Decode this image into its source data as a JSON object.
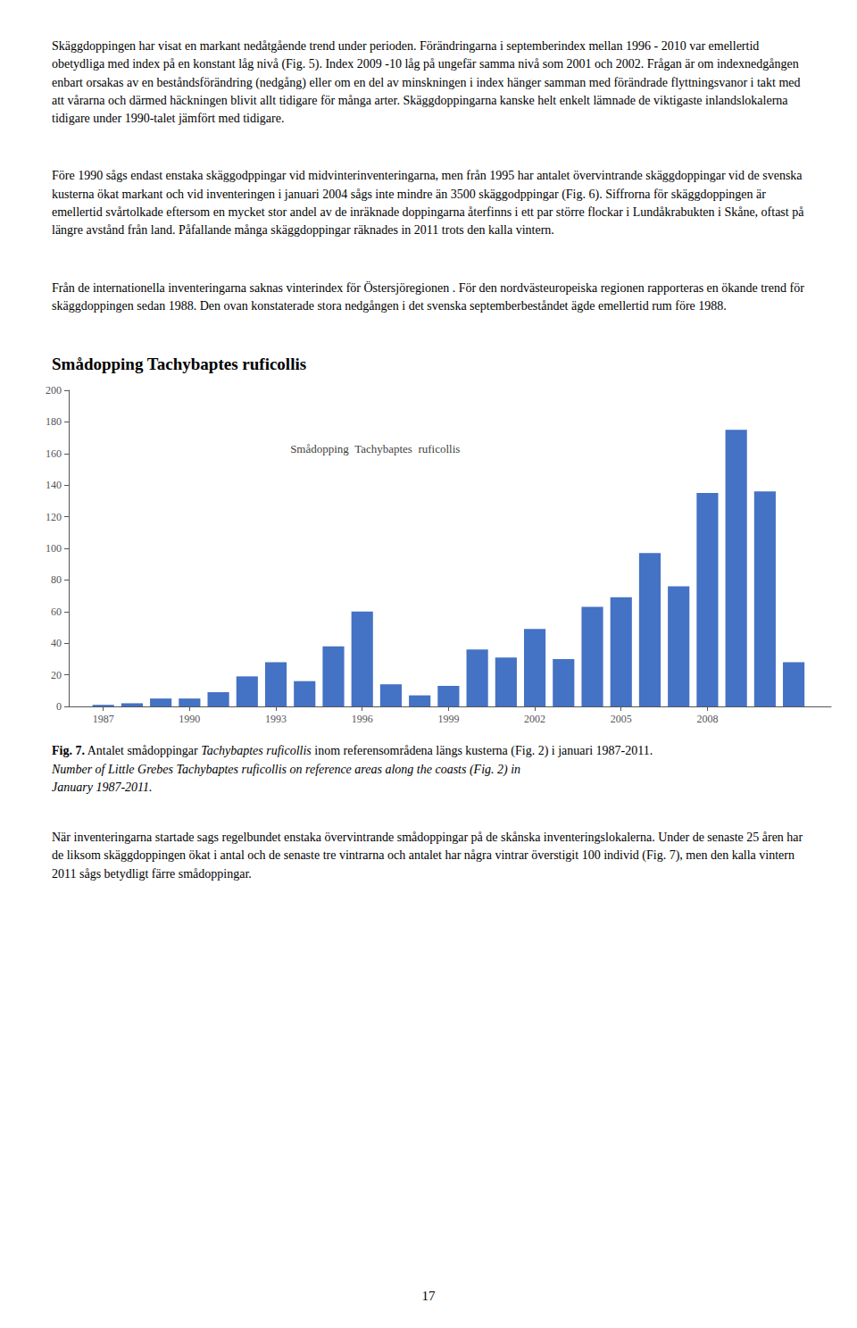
{
  "page": {
    "paragraphs": [
      "Skäggdoppingen har visat en markant nedåtgående trend under perioden. Förändringarna i septemberindex mellan 1996 - 2010 var emellertid obetydliga med index på en konstant låg nivå (Fig. 5). Index 2009 -10 låg på ungefär samma nivå som 2001 och 2002. Frågan är om indexnedgången enbart orsakas av en beståndsförändring (nedgång) eller om en del av minskningen i index hänger samman med förändrade flyttningsvanor i takt med att vårarna och därmed häckningen blivit allt tidigare för många arter. Skäggdoppingarna kanske helt enkelt lämnade de viktigaste inlandslokalerna tidigare under 1990-talet jämfört med tidigare.",
      "Före 1990 sågs endast enstaka skäggodppingar vid midvinterinventeringarna, men från 1995 har antalet övervintrande skäggdoppingar vid de svenska kusterna ökat markant och vid inventeringen i januari 2004 sågs inte mindre än 3500 skäggodppingar (Fig. 6). Siffrorna för skäggdoppingen är emellertid svårtolkade eftersom en mycket stor andel av de inräknade doppingarna återfinns i ett par större flockar i Lundåkrabukten i Skåne, oftast på längre avstånd från land. Påfallande många skäggdoppingar räknades in 2011 trots den kalla vintern.",
      "Från de internationella inventeringarna saknas vinterindex för Östersjöregionen . För den nordvästeuropeiska regionen rapporteras en ökande trend för skäggdoppingen sedan 1988. Den ovan konstaterade stora nedgången i det svenska septemberbeståndet ägde emellertid rum före 1988."
    ],
    "section_title": "Smådopping Tachybaptes ruficollis",
    "caption": {
      "bold": "Fig. 7.",
      "normal": " Antalet smådoppingar ",
      "italic": "Tachybaptes ruficollis",
      "rest": " inom referensområdena längs kusterna (Fig. 2) i januari 1987-2011.",
      "english": [
        "Number of Little Grebes Tachybaptes ruficollis on reference areas along the coasts (Fig. 2) in",
        "January 1987-2011."
      ]
    },
    "footer": "När inventeringarna startade sags regelbundet enstaka övervintrande smådoppingar på de skånska inventeringslokalerna. Under de senaste 25 åren har de liksom skäggdoppingen ökat i antal och de senaste tre vintrarna och antalet har några vintrar överstigit 100 individ (Fig. 7), men den kalla vintern 2011 sågs betydligt färre smådoppingar.",
    "page_number": "17"
  },
  "chart_data": {
    "type": "bar",
    "x": [
      1987,
      1988,
      1989,
      1990,
      1991,
      1992,
      1993,
      1994,
      1995,
      1996,
      1997,
      1998,
      1999,
      2000,
      2001,
      2002,
      2003,
      2004,
      2005,
      2006,
      2007,
      2008,
      2009,
      2010,
      2011
    ],
    "values": [
      1,
      2,
      5,
      5,
      9,
      19,
      28,
      16,
      38,
      60,
      14,
      7,
      13,
      36,
      31,
      49,
      30,
      63,
      69,
      97,
      76,
      135,
      175,
      136,
      28
    ],
    "color": "#4472C4",
    "xlim": [
      1985.8,
      2012.3
    ],
    "xticks": [
      1987,
      1990,
      1993,
      1996,
      1999,
      2002,
      2005,
      2008
    ],
    "ylim": [
      0,
      200
    ],
    "yticks": [
      0,
      20,
      40,
      60,
      80,
      100,
      120,
      140,
      160,
      180,
      200
    ],
    "grid": false,
    "annotations": [
      {
        "text": "Smådopping  Tachybaptes  ruficollis",
        "x": 1993.5,
        "y": 163
      }
    ]
  }
}
